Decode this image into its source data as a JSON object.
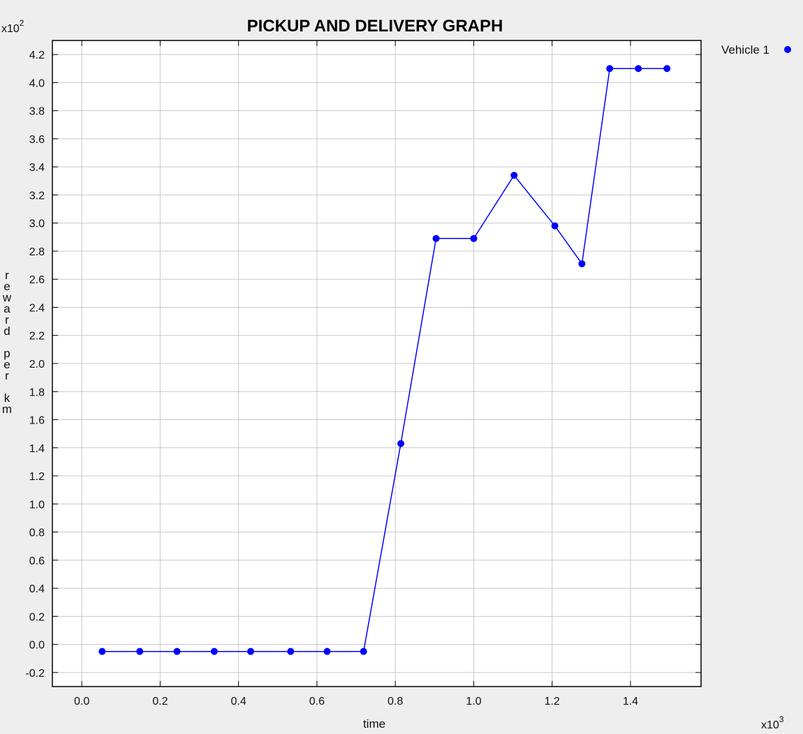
{
  "chart_data": {
    "type": "line",
    "title": "PICKUP AND DELIVERY GRAPH",
    "xlabel": "time",
    "ylabel": "reward per km",
    "x_multiplier": "x10",
    "x_multiplier_exp": "3",
    "y_multiplier": "x10",
    "y_multiplier_exp": "2",
    "xlim": [
      -0.075,
      1.58
    ],
    "ylim": [
      -0.3,
      4.3
    ],
    "x_ticks": [
      "0.0",
      "0.2",
      "0.4",
      "0.6",
      "0.8",
      "1.0",
      "1.2",
      "1.4"
    ],
    "y_ticks": [
      "-0.2",
      "0.0",
      "0.2",
      "0.4",
      "0.6",
      "0.8",
      "1.0",
      "1.2",
      "1.4",
      "1.6",
      "1.8",
      "2.0",
      "2.2",
      "2.4",
      "2.6",
      "2.8",
      "3.0",
      "3.2",
      "3.4",
      "3.6",
      "3.8",
      "4.0",
      "4.2"
    ],
    "grid": true,
    "legend_position": "top-right",
    "series": [
      {
        "name": "Vehicle 1",
        "color": "#0000ff",
        "x": [
          0.052,
          0.148,
          0.243,
          0.338,
          0.431,
          0.533,
          0.626,
          0.719,
          0.814,
          0.904,
          1.0,
          1.103,
          1.207,
          1.276,
          1.347,
          1.42,
          1.493
        ],
        "y": [
          -0.05,
          -0.05,
          -0.05,
          -0.05,
          -0.05,
          -0.05,
          -0.05,
          -0.05,
          1.43,
          2.89,
          2.89,
          3.34,
          2.98,
          2.71,
          4.1,
          4.1,
          4.1
        ]
      }
    ]
  }
}
